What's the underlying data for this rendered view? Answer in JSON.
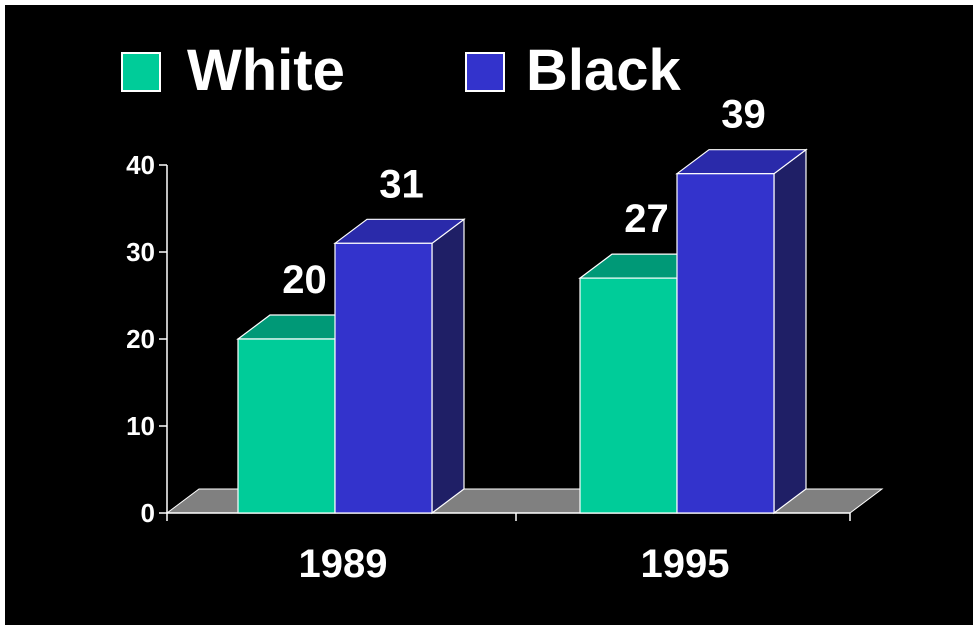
{
  "chart_data": {
    "type": "bar",
    "categories": [
      "1989",
      "1995"
    ],
    "series": [
      {
        "name": "White",
        "values": [
          20,
          27
        ],
        "data_labels": [
          "20",
          "27"
        ]
      },
      {
        "name": "Black",
        "values": [
          31,
          39
        ],
        "data_labels": [
          "31",
          "39"
        ]
      }
    ],
    "ylim": [
      0,
      40
    ],
    "yticks": [
      0,
      10,
      20,
      30,
      40
    ],
    "ytick_labels": [
      "0",
      "10",
      "20",
      "30",
      "40"
    ],
    "title": "",
    "xlabel": "",
    "ylabel": "",
    "grid": false,
    "legend_position": "top",
    "three_d": true
  },
  "colors": {
    "background": "#000000",
    "white_front": "#00cc99",
    "white_top": "#009977",
    "black_front": "#3333cc",
    "black_top": "#2a2aaa",
    "black_side": "#1f1f66",
    "floor": "#808080",
    "text": "#ffffff"
  }
}
